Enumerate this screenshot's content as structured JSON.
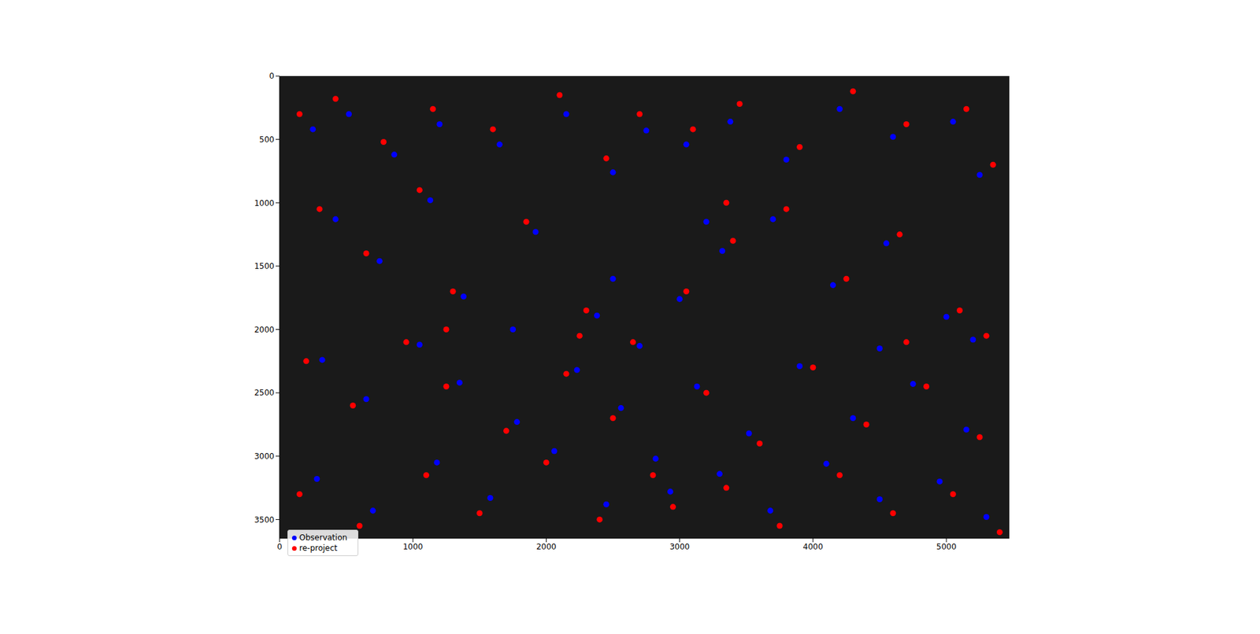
{
  "chart_data": {
    "type": "scatter",
    "xlim": [
      0,
      5472
    ],
    "ylim": [
      0,
      3648
    ],
    "xticks": [
      0,
      1000,
      2000,
      3000,
      4000,
      5000
    ],
    "yticks": [
      0,
      500,
      1000,
      1500,
      2000,
      2500,
      3000,
      3500
    ],
    "legend": "lower left",
    "grid": false,
    "series": [
      {
        "name": "re-project",
        "color": "#ff0000",
        "marker": "circle",
        "points": [
          [
            150,
            300
          ],
          [
            420,
            180
          ],
          [
            780,
            520
          ],
          [
            1150,
            260
          ],
          [
            1600,
            420
          ],
          [
            2100,
            150
          ],
          [
            2450,
            650
          ],
          [
            2700,
            300
          ],
          [
            3100,
            420
          ],
          [
            3450,
            220
          ],
          [
            3900,
            560
          ],
          [
            4300,
            120
          ],
          [
            4700,
            380
          ],
          [
            5150,
            260
          ],
          [
            5350,
            700
          ],
          [
            300,
            1050
          ],
          [
            650,
            1400
          ],
          [
            1050,
            900
          ],
          [
            1300,
            1700
          ],
          [
            1850,
            1150
          ],
          [
            2300,
            1850
          ],
          [
            2650,
            2100
          ],
          [
            3050,
            1700
          ],
          [
            3400,
            1300
          ],
          [
            3800,
            1050
          ],
          [
            4250,
            1600
          ],
          [
            4650,
            1250
          ],
          [
            5100,
            1850
          ],
          [
            5300,
            2050
          ],
          [
            200,
            2250
          ],
          [
            550,
            2600
          ],
          [
            950,
            2100
          ],
          [
            1250,
            2450
          ],
          [
            1700,
            2800
          ],
          [
            2150,
            2350
          ],
          [
            2500,
            2700
          ],
          [
            2800,
            3150
          ],
          [
            3200,
            2500
          ],
          [
            3600,
            2900
          ],
          [
            4000,
            2300
          ],
          [
            4400,
            2750
          ],
          [
            4850,
            2450
          ],
          [
            5250,
            2850
          ],
          [
            150,
            3300
          ],
          [
            600,
            3550
          ],
          [
            1100,
            3150
          ],
          [
            1500,
            3450
          ],
          [
            2000,
            3050
          ],
          [
            2400,
            3500
          ],
          [
            2950,
            3400
          ],
          [
            3350,
            3250
          ],
          [
            3750,
            3550
          ],
          [
            4200,
            3150
          ],
          [
            4600,
            3450
          ],
          [
            5050,
            3300
          ],
          [
            5400,
            3600
          ],
          [
            1250,
            2000
          ],
          [
            4700,
            2100
          ],
          [
            2250,
            2050
          ],
          [
            3350,
            1000
          ]
        ]
      },
      {
        "name": "Observation",
        "color": "#0000ff",
        "marker": "circle",
        "points": [
          [
            250,
            420
          ],
          [
            520,
            300
          ],
          [
            860,
            620
          ],
          [
            1200,
            380
          ],
          [
            1650,
            540
          ],
          [
            2150,
            300
          ],
          [
            2500,
            760
          ],
          [
            2750,
            430
          ],
          [
            3050,
            540
          ],
          [
            3380,
            360
          ],
          [
            3800,
            660
          ],
          [
            4200,
            260
          ],
          [
            4600,
            480
          ],
          [
            5050,
            360
          ],
          [
            5250,
            780
          ],
          [
            420,
            1130
          ],
          [
            750,
            1460
          ],
          [
            1130,
            980
          ],
          [
            1380,
            1740
          ],
          [
            1920,
            1230
          ],
          [
            2380,
            1890
          ],
          [
            2700,
            2130
          ],
          [
            3000,
            1760
          ],
          [
            3320,
            1380
          ],
          [
            3700,
            1130
          ],
          [
            4150,
            1650
          ],
          [
            4550,
            1320
          ],
          [
            5000,
            1900
          ],
          [
            5200,
            2080
          ],
          [
            320,
            2240
          ],
          [
            650,
            2550
          ],
          [
            1050,
            2120
          ],
          [
            1350,
            2420
          ],
          [
            1780,
            2730
          ],
          [
            2230,
            2320
          ],
          [
            2560,
            2620
          ],
          [
            2820,
            3020
          ],
          [
            3130,
            2450
          ],
          [
            3520,
            2820
          ],
          [
            3900,
            2290
          ],
          [
            4300,
            2700
          ],
          [
            4750,
            2430
          ],
          [
            5150,
            2790
          ],
          [
            280,
            3180
          ],
          [
            700,
            3430
          ],
          [
            1180,
            3050
          ],
          [
            1580,
            3330
          ],
          [
            2060,
            2960
          ],
          [
            2450,
            3380
          ],
          [
            2930,
            3280
          ],
          [
            3300,
            3140
          ],
          [
            3680,
            3430
          ],
          [
            4100,
            3060
          ],
          [
            4500,
            3340
          ],
          [
            4950,
            3200
          ],
          [
            5300,
            3480
          ],
          [
            1750,
            2000
          ],
          [
            4500,
            2150
          ],
          [
            2500,
            1600
          ],
          [
            3200,
            1150
          ]
        ]
      }
    ]
  }
}
